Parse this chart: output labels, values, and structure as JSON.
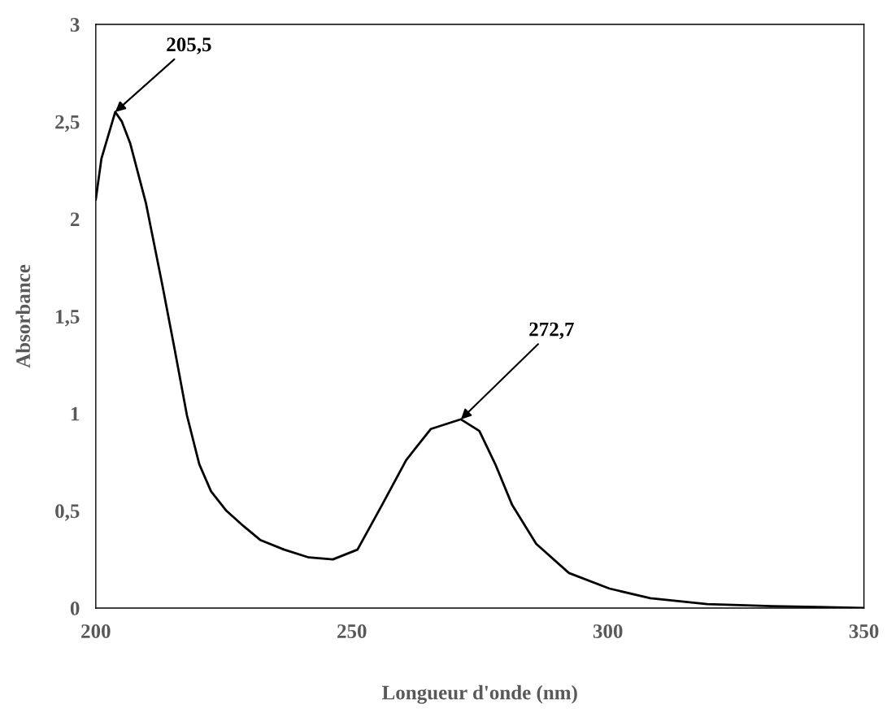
{
  "chart_data": {
    "type": "line",
    "xlabel": "Longueur d'onde (nm)",
    "ylabel": "Absorbance",
    "x": [
      200,
      201.1,
      203.8,
      205.1,
      206.7,
      209.8,
      213,
      215.4,
      217.8,
      220.2,
      222.5,
      225.5,
      228.9,
      232.1,
      236.8,
      241.6,
      246.3,
      251.1,
      255.9,
      260.6,
      265.4,
      271.3,
      274.9,
      278,
      281.3,
      286,
      292.4,
      300.3,
      308.3,
      319.4,
      332,
      350
    ],
    "series": [
      {
        "color": "#000000",
        "values": [
          2.1,
          2.31,
          2.55,
          2.5,
          2.39,
          2.08,
          1.66,
          1.33,
          0.99,
          0.74,
          0.6,
          0.5,
          0.42,
          0.35,
          0.3,
          0.26,
          0.25,
          0.3,
          0.53,
          0.76,
          0.92,
          0.97,
          0.91,
          0.74,
          0.53,
          0.33,
          0.18,
          0.1,
          0.05,
          0.02,
          0.01,
          0.0
        ]
      }
    ],
    "xlim": [
      200,
      350
    ],
    "xticks": [
      200,
      250,
      300,
      350
    ],
    "ylim": [
      0,
      3
    ],
    "yticks": [
      0,
      {
        "value": 0.5,
        "label": "0,5"
      },
      1,
      {
        "value": 1.5,
        "label": "1,5"
      },
      2,
      {
        "value": 2.5,
        "label": "2,5"
      },
      3
    ],
    "annotations": [
      {
        "text": "205,5",
        "x": 203.8,
        "y": 2.55
      },
      {
        "text": "272,7",
        "x": 271.3,
        "y": 0.97
      }
    ],
    "grid": false,
    "legend": false,
    "marker": "none",
    "line_style": "solid"
  }
}
